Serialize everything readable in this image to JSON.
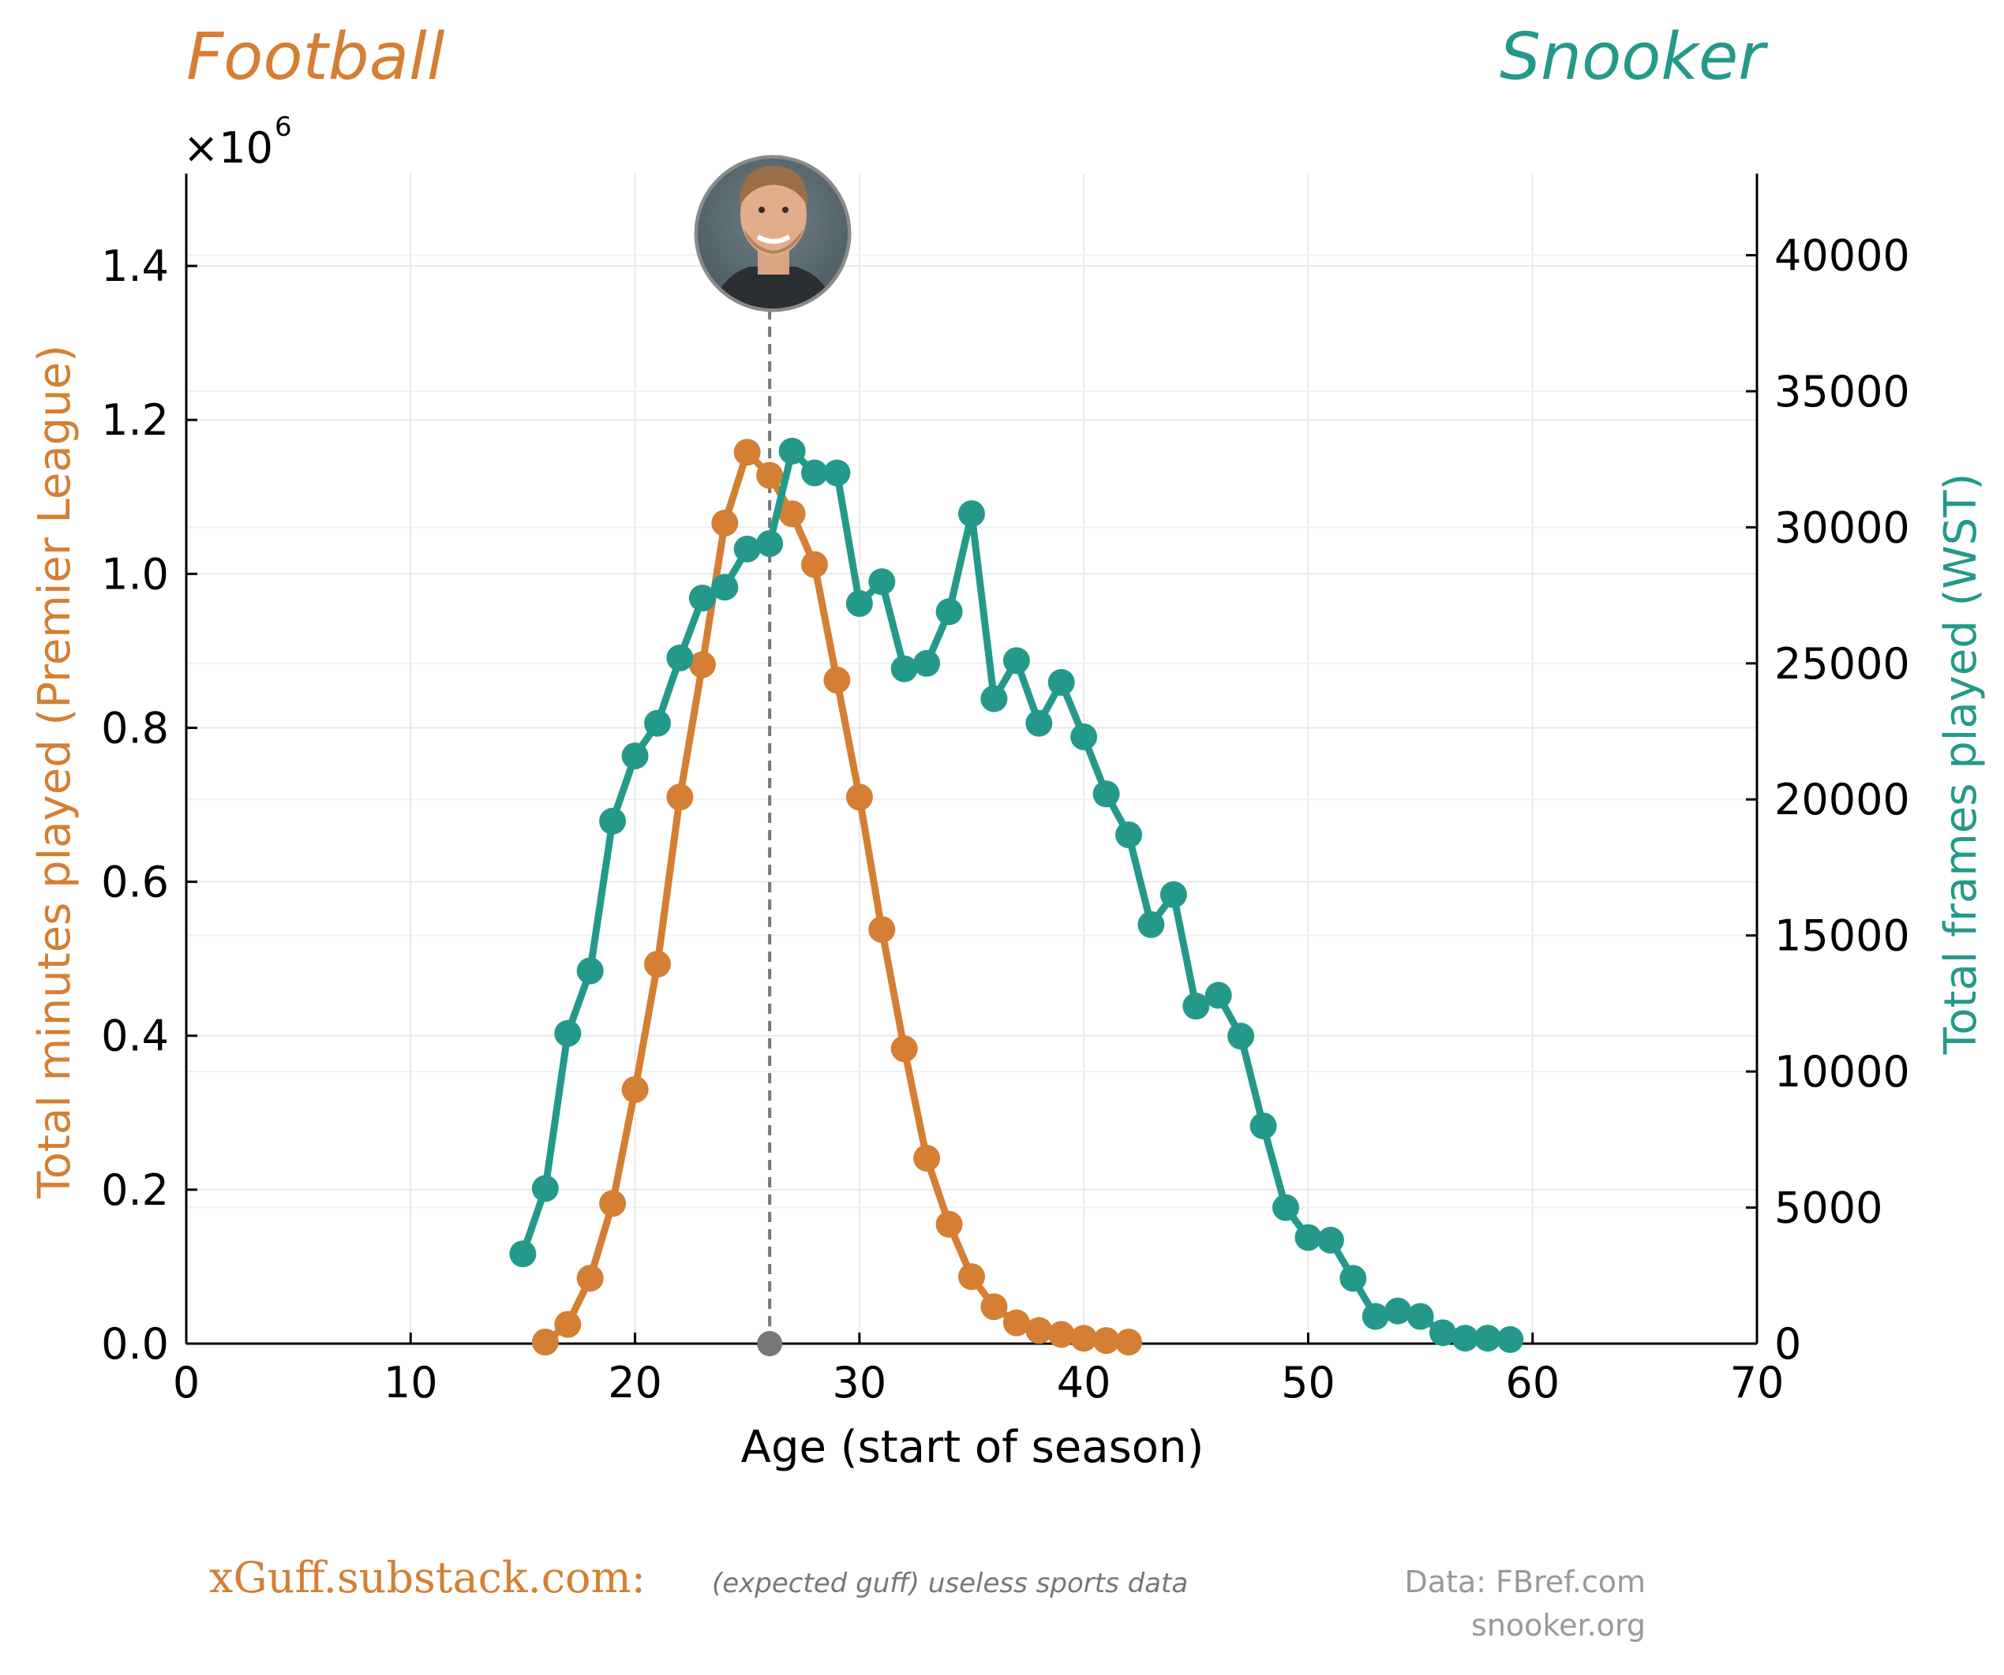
{
  "colors": {
    "football": "#d47f33",
    "snooker": "#24998a",
    "axis": "#000000",
    "grid": "#e8e8e8",
    "marker_line": "#777777",
    "footer_grey": "#999999"
  },
  "header": {
    "left_title": "Football",
    "right_title": "Snooker",
    "left_multiplier": "×10",
    "left_multiplier_exp": "6"
  },
  "avatar": {
    "icon": "person-photo",
    "age": 26
  },
  "footer": {
    "site": "xGuff.substack.com:",
    "tagline": "(expected guff) useless sports data",
    "data_label": "Data:  FBref.com",
    "data_label_2": "snooker.org"
  },
  "chart_data": {
    "type": "line",
    "title_left": "Football",
    "title_right": "Snooker",
    "xlabel": "Age (start of season)",
    "ylabel_left": "Total minutes played (Premier League)",
    "ylabel_right": "Total frames played (WST)",
    "xlim": [
      0,
      70
    ],
    "ylim_left": [
      0,
      1.52
    ],
    "ylim_right": [
      0,
      43000
    ],
    "x_ticks": [
      "0",
      "10",
      "20",
      "30",
      "40",
      "50",
      "60",
      "70"
    ],
    "y_left_ticks": [
      "0.0",
      "0.2",
      "0.4",
      "0.6",
      "0.8",
      "1.0",
      "1.2",
      "1.4"
    ],
    "y_right_ticks": [
      "0",
      "5000",
      "10000",
      "15000",
      "20000",
      "25000",
      "30000",
      "35000",
      "40000"
    ],
    "grid": true,
    "vertical_marker_x": 26,
    "series": [
      {
        "name": "Football",
        "axis": "left",
        "unit": "×10^6 minutes",
        "x": [
          16,
          17,
          18,
          19,
          20,
          21,
          22,
          23,
          24,
          25,
          26,
          27,
          28,
          29,
          30,
          31,
          32,
          33,
          34,
          35,
          36,
          37,
          38,
          39,
          40,
          41,
          42
        ],
        "values": [
          0.002,
          0.025,
          0.085,
          0.182,
          0.33,
          0.493,
          0.71,
          0.882,
          1.066,
          1.158,
          1.128,
          1.078,
          1.012,
          0.862,
          0.71,
          0.538,
          0.383,
          0.241,
          0.155,
          0.087,
          0.048,
          0.027,
          0.017,
          0.012,
          0.007,
          0.004,
          0.002
        ]
      },
      {
        "name": "Snooker",
        "axis": "right",
        "unit": "frames",
        "x": [
          15,
          16,
          17,
          18,
          19,
          20,
          21,
          22,
          23,
          24,
          25,
          26,
          27,
          28,
          29,
          30,
          31,
          32,
          33,
          34,
          35,
          36,
          37,
          38,
          39,
          40,
          41,
          42,
          43,
          44,
          45,
          46,
          47,
          48,
          49,
          50,
          51,
          52,
          53,
          54,
          55,
          56,
          57,
          58,
          59
        ],
        "values": [
          3300,
          5700,
          11400,
          13700,
          19200,
          21600,
          22800,
          25200,
          27400,
          27800,
          29200,
          29400,
          32800,
          32000,
          32000,
          27200,
          28000,
          24800,
          25000,
          26900,
          30500,
          23700,
          25100,
          22800,
          24300,
          22300,
          20200,
          18700,
          15400,
          16500,
          12400,
          12800,
          11300,
          8000,
          5000,
          3900,
          3800,
          2400,
          1000,
          1200,
          1000,
          400,
          200,
          200,
          150
        ]
      }
    ]
  }
}
